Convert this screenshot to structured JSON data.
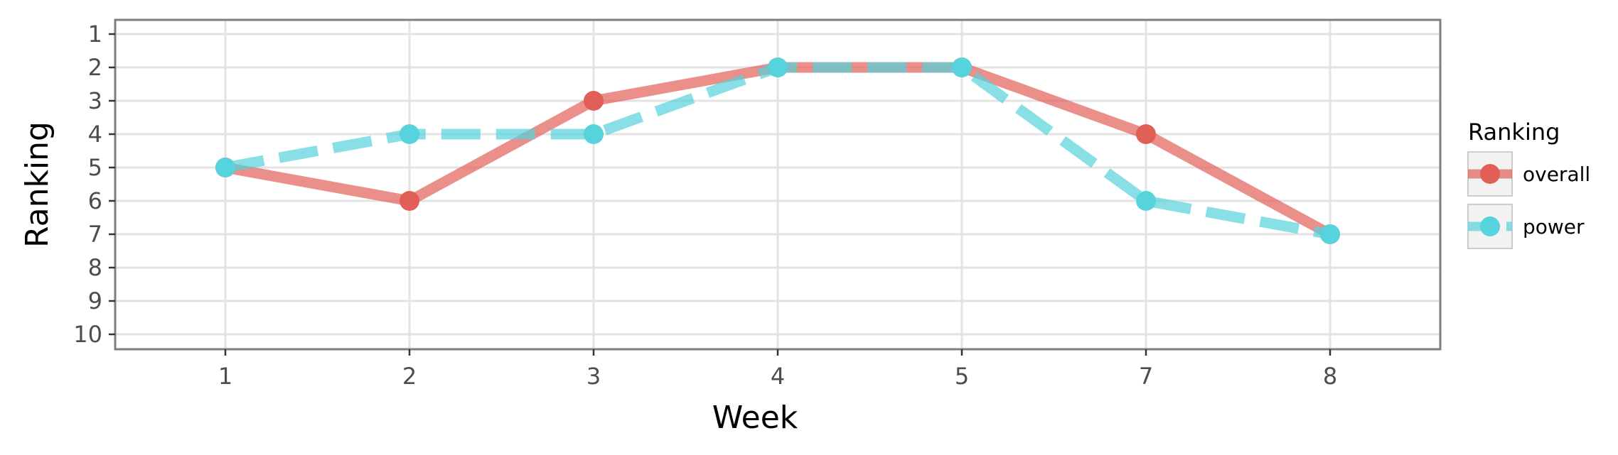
{
  "chart_data": {
    "type": "line",
    "xlabel": "Week",
    "ylabel": "Ranking",
    "categories": [
      "1",
      "2",
      "3",
      "4",
      "5",
      "7",
      "8"
    ],
    "y_ticks": [
      1,
      2,
      3,
      4,
      5,
      6,
      7,
      8,
      9,
      10
    ],
    "ylim": [
      1,
      10
    ],
    "y_reversed": true,
    "grid": true,
    "legend": {
      "title": "Ranking",
      "position": "right"
    },
    "series": [
      {
        "name": "overall",
        "values": [
          5,
          6,
          3,
          2,
          2,
          4,
          7
        ],
        "color": "#e15f57",
        "line_style": "solid"
      },
      {
        "name": "power",
        "values": [
          5,
          4,
          4,
          2,
          2,
          6,
          7
        ],
        "color": "#56d3dc",
        "line_style": "dashed"
      }
    ]
  }
}
